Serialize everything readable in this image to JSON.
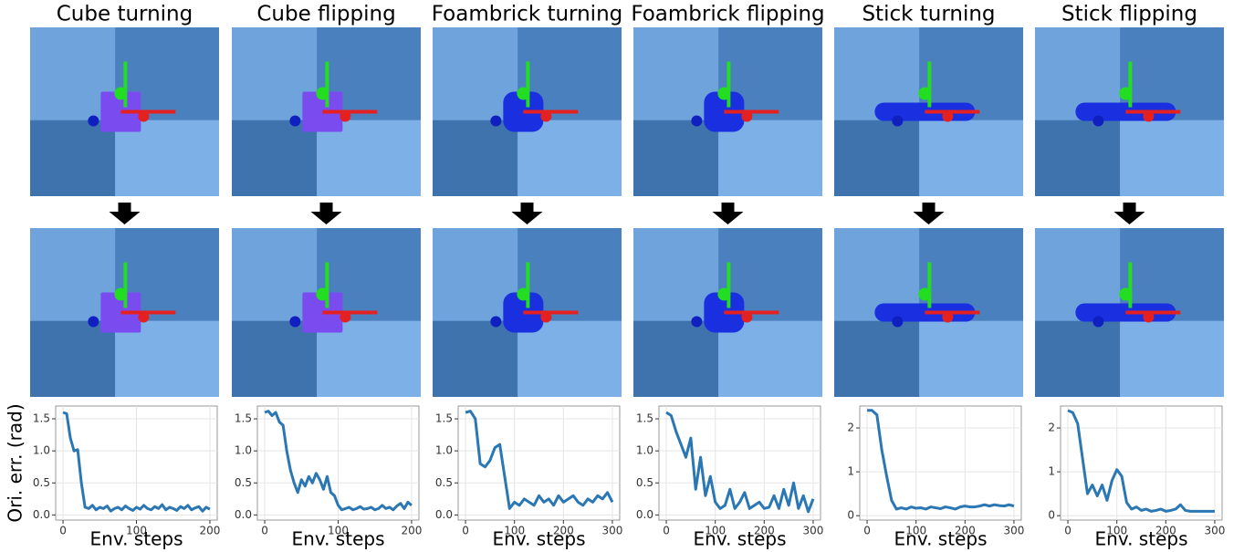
{
  "chart_data": [
    {
      "type": "line",
      "title": "Cube turning",
      "y_label": "Ori. err. (rad)",
      "x_label": "Env. steps",
      "color": "#2a77b4",
      "grid": true,
      "xlim": [
        -10,
        210
      ],
      "ylim": [
        -0.08,
        1.7
      ],
      "xticks": [
        0,
        100,
        200
      ],
      "yticks": [
        {
          "value": 0,
          "label": "0.0"
        },
        {
          "value": 0.5,
          "label": "0.5"
        },
        {
          "value": 1,
          "label": "1.0"
        },
        {
          "value": 1.5,
          "label": "1.5"
        }
      ],
      "x": [
        0,
        5,
        10,
        15,
        20,
        25,
        30,
        35,
        40,
        45,
        50,
        55,
        60,
        65,
        70,
        75,
        80,
        85,
        90,
        95,
        100,
        105,
        110,
        115,
        120,
        125,
        130,
        135,
        140,
        145,
        150,
        155,
        160,
        165,
        170,
        175,
        180,
        185,
        190,
        195,
        200
      ],
      "values": [
        1.6,
        1.58,
        1.2,
        1.0,
        1.02,
        0.5,
        0.12,
        0.1,
        0.15,
        0.08,
        0.12,
        0.1,
        0.14,
        0.06,
        0.1,
        0.12,
        0.08,
        0.14,
        0.1,
        0.07,
        0.12,
        0.09,
        0.15,
        0.1,
        0.08,
        0.13,
        0.1,
        0.16,
        0.08,
        0.12,
        0.1,
        0.07,
        0.13,
        0.1,
        0.15,
        0.08,
        0.11,
        0.13,
        0.06,
        0.12,
        0.09
      ]
    },
    {
      "type": "line",
      "title": "Cube flipping",
      "x_label": "Env. steps",
      "color": "#2a77b4",
      "grid": true,
      "xlim": [
        -10,
        210
      ],
      "ylim": [
        -0.08,
        1.7
      ],
      "xticks": [
        0,
        100,
        200
      ],
      "yticks": [
        {
          "value": 0,
          "label": "0.0"
        },
        {
          "value": 0.5,
          "label": "0.5"
        },
        {
          "value": 1,
          "label": "1.0"
        },
        {
          "value": 1.5,
          "label": "1.5"
        }
      ],
      "x": [
        0,
        5,
        10,
        15,
        20,
        25,
        30,
        35,
        40,
        45,
        50,
        55,
        60,
        65,
        70,
        75,
        80,
        85,
        90,
        95,
        100,
        105,
        110,
        115,
        120,
        125,
        130,
        135,
        140,
        145,
        150,
        155,
        160,
        165,
        170,
        175,
        180,
        185,
        190,
        195,
        200
      ],
      "values": [
        1.6,
        1.62,
        1.55,
        1.6,
        1.45,
        1.4,
        1.0,
        0.7,
        0.5,
        0.35,
        0.55,
        0.45,
        0.6,
        0.5,
        0.65,
        0.55,
        0.4,
        0.6,
        0.35,
        0.3,
        0.15,
        0.08,
        0.1,
        0.12,
        0.08,
        0.1,
        0.13,
        0.09,
        0.1,
        0.12,
        0.08,
        0.1,
        0.15,
        0.1,
        0.12,
        0.08,
        0.14,
        0.18,
        0.1,
        0.2,
        0.15
      ]
    },
    {
      "type": "line",
      "title": "Foambrick turning",
      "x_label": "Env. steps",
      "color": "#2a77b4",
      "grid": true,
      "xlim": [
        -15,
        315
      ],
      "ylim": [
        -0.08,
        1.7
      ],
      "xticks": [
        0,
        100,
        200,
        300
      ],
      "yticks": [
        {
          "value": 0,
          "label": "0.0"
        },
        {
          "value": 0.5,
          "label": "0.5"
        },
        {
          "value": 1,
          "label": "1.0"
        },
        {
          "value": 1.5,
          "label": "1.5"
        }
      ],
      "x": [
        0,
        10,
        20,
        30,
        40,
        50,
        60,
        70,
        80,
        90,
        100,
        110,
        120,
        130,
        140,
        150,
        160,
        170,
        180,
        190,
        200,
        210,
        220,
        230,
        240,
        250,
        260,
        270,
        280,
        290,
        300
      ],
      "values": [
        1.6,
        1.62,
        1.5,
        0.8,
        0.75,
        0.85,
        1.05,
        1.1,
        0.6,
        0.1,
        0.2,
        0.15,
        0.25,
        0.2,
        0.15,
        0.3,
        0.2,
        0.25,
        0.15,
        0.3,
        0.2,
        0.25,
        0.3,
        0.2,
        0.15,
        0.25,
        0.2,
        0.3,
        0.25,
        0.35,
        0.2
      ]
    },
    {
      "type": "line",
      "title": "Foambrick flipping",
      "x_label": "Env. steps",
      "color": "#2a77b4",
      "grid": true,
      "xlim": [
        -15,
        315
      ],
      "ylim": [
        -0.08,
        1.7
      ],
      "xticks": [
        0,
        100,
        200,
        300
      ],
      "yticks": [
        {
          "value": 0,
          "label": "0.0"
        },
        {
          "value": 0.5,
          "label": "0.5"
        },
        {
          "value": 1,
          "label": "1.0"
        },
        {
          "value": 1.5,
          "label": "1.5"
        }
      ],
      "x": [
        0,
        10,
        20,
        30,
        40,
        50,
        60,
        70,
        80,
        90,
        100,
        110,
        120,
        130,
        140,
        150,
        160,
        170,
        180,
        190,
        200,
        210,
        220,
        230,
        240,
        250,
        260,
        270,
        280,
        290,
        300
      ],
      "values": [
        1.6,
        1.55,
        1.3,
        1.1,
        0.9,
        1.2,
        0.4,
        0.9,
        0.3,
        0.6,
        0.2,
        0.1,
        0.15,
        0.4,
        0.1,
        0.2,
        0.35,
        0.1,
        0.15,
        0.2,
        0.1,
        0.12,
        0.3,
        0.1,
        0.4,
        0.15,
        0.5,
        0.1,
        0.3,
        0.05,
        0.25
      ]
    },
    {
      "type": "line",
      "title": "Stick turning",
      "x_label": "Env. steps",
      "color": "#2a77b4",
      "grid": true,
      "xlim": [
        -15,
        315
      ],
      "ylim": [
        -0.1,
        2.5
      ],
      "xticks": [
        0,
        100,
        200,
        300
      ],
      "yticks": [
        0,
        1,
        2
      ],
      "x": [
        0,
        10,
        20,
        30,
        40,
        50,
        60,
        70,
        80,
        90,
        100,
        110,
        120,
        130,
        140,
        150,
        160,
        170,
        180,
        190,
        200,
        210,
        220,
        230,
        240,
        250,
        260,
        270,
        280,
        290,
        300
      ],
      "values": [
        2.4,
        2.4,
        2.3,
        1.5,
        0.9,
        0.35,
        0.15,
        0.18,
        0.15,
        0.2,
        0.17,
        0.18,
        0.15,
        0.2,
        0.18,
        0.16,
        0.2,
        0.18,
        0.15,
        0.2,
        0.22,
        0.2,
        0.2,
        0.22,
        0.25,
        0.22,
        0.25,
        0.23,
        0.22,
        0.25,
        0.22
      ]
    },
    {
      "type": "line",
      "title": "Stick flipping",
      "x_label": "Env. steps",
      "color": "#2a77b4",
      "grid": true,
      "xlim": [
        -15,
        315
      ],
      "ylim": [
        -0.1,
        2.5
      ],
      "xticks": [
        0,
        100,
        200,
        300
      ],
      "yticks": [
        0,
        1,
        2
      ],
      "x": [
        0,
        10,
        20,
        30,
        40,
        50,
        60,
        70,
        80,
        90,
        100,
        110,
        120,
        130,
        140,
        150,
        160,
        170,
        180,
        190,
        200,
        210,
        220,
        230,
        240,
        250,
        260,
        270,
        280,
        290,
        300
      ],
      "values": [
        2.4,
        2.35,
        2.1,
        1.3,
        0.5,
        0.7,
        0.45,
        0.7,
        0.35,
        0.8,
        1.05,
        0.9,
        0.3,
        0.15,
        0.2,
        0.12,
        0.15,
        0.1,
        0.12,
        0.15,
        0.1,
        0.12,
        0.15,
        0.25,
        0.12,
        0.1,
        0.1,
        0.1,
        0.1,
        0.1,
        0.1
      ]
    }
  ]
}
